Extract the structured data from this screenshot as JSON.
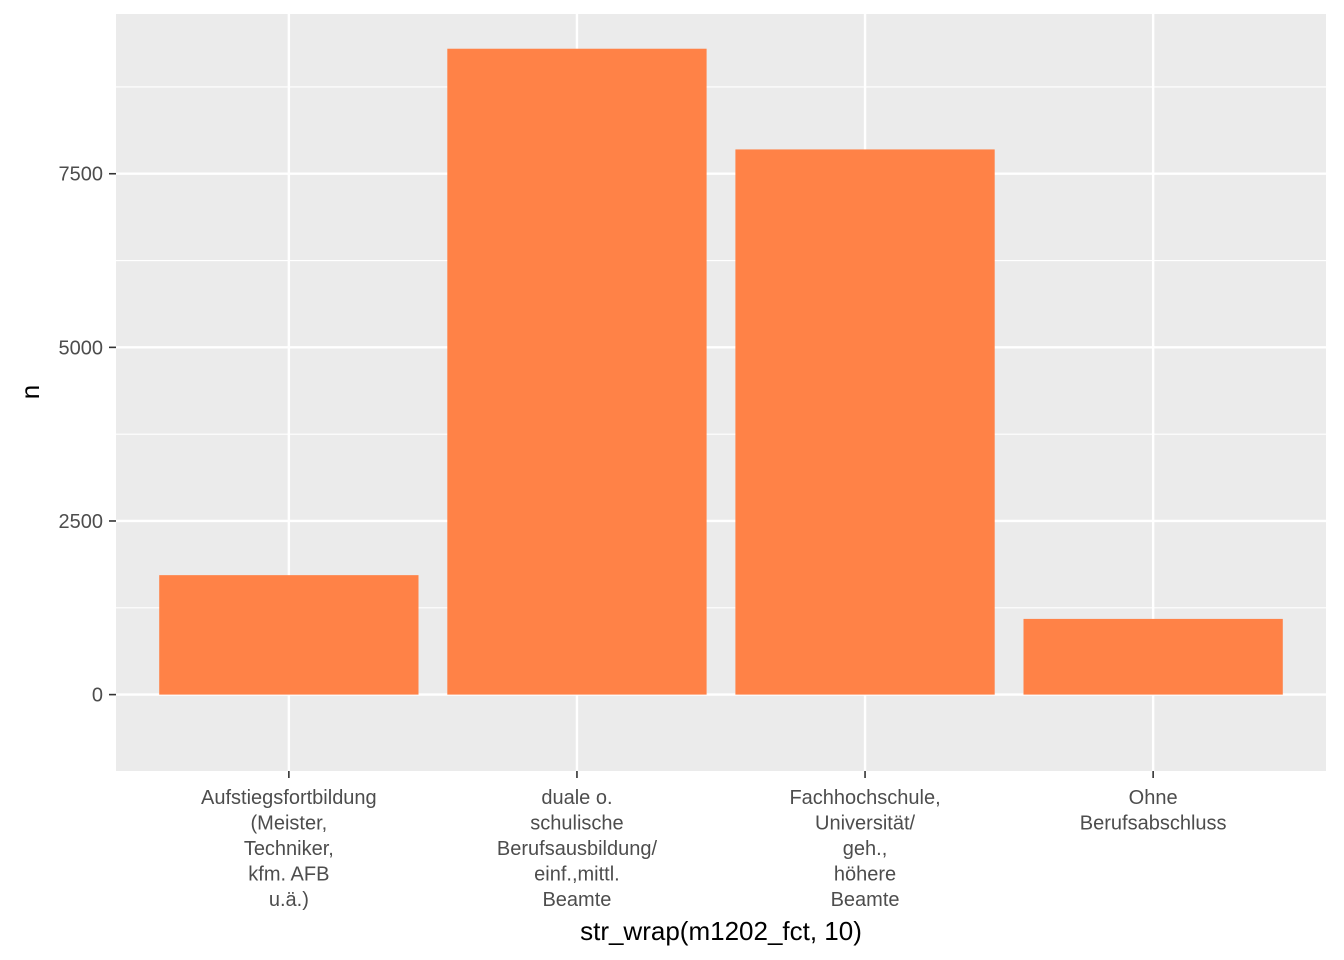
{
  "chart_data": {
    "type": "bar",
    "categories": [
      [
        "Aufstiegsfortbildung",
        "(Meister,",
        "Techniker,",
        "kfm. AFB",
        "u.ä.)"
      ],
      [
        "duale o.",
        "schulische",
        "Berufsausbildung/",
        "einf.,mittl.",
        "Beamte"
      ],
      [
        "Fachhochschule,",
        "Universität/",
        "geh.,",
        "höhere",
        "Beamte"
      ],
      [
        "Ohne",
        "Berufsabschluss"
      ]
    ],
    "values": [
      1720,
      9300,
      7850,
      1090
    ],
    "xlabel": "str_wrap(m1202_fct, 10)",
    "ylabel": "n",
    "ylim": [
      -1100,
      9800
    ],
    "yticks": [
      0,
      2500,
      5000,
      7500
    ],
    "grid": true,
    "colors": {
      "bar": "#ff8247",
      "panel": "#ebebeb",
      "grid": "#ffffff",
      "tick_text": "#4d4d4d",
      "tick_mark": "#333333"
    }
  }
}
